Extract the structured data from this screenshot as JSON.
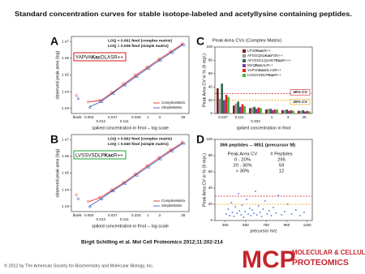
{
  "title": "Standard concentration curves for stable isotope-labeled and acetyllysine containing peptides.",
  "citation": "Birgit Schilling et al. Mol Cell Proteomics 2012;11:202-214",
  "copyright": "© 2012 by The American Society for Biochemistry and Molecular Biology, Inc.",
  "logo": {
    "mark": "MCP",
    "line1": "MOLECULAR & CELLULAR",
    "line2": "PROTEOMICS"
  },
  "chart_data": [
    {
      "type": "line",
      "panel": "A",
      "log_scale": true,
      "annotations": [
        "LOQ = 0.061 fmol (complex matrix)",
        "LOQ = 0.036 fmol (simple matrix)"
      ],
      "peptide": "YAPVAKacDLASR++",
      "peptide_color": "#d7191c",
      "x_label": "spiked concentration in fmol -- log scale",
      "y_label": "observed peak area (log)",
      "categories": [
        "blank",
        "0.004",
        "0.012",
        "0.037",
        "0.111",
        "0.333",
        "1",
        "3",
        null,
        "25"
      ],
      "ylim": [
        500,
        20000000
      ],
      "yticks": [
        {
          "value": 1000,
          "label": "1 e3"
        },
        {
          "value": 10000,
          "label": "1 e4"
        },
        {
          "value": 100000,
          "label": "1 e5"
        },
        {
          "value": 1000000,
          "label": "1 e6"
        },
        {
          "value": 10000000,
          "label": "1 e7"
        }
      ],
      "legend": "lower right",
      "series": [
        {
          "name": "ComplexMatrix",
          "color": "#d7191c",
          "values": [
            6000,
            2500,
            3000,
            9000,
            30000,
            100000,
            300000,
            900000,
            2600000,
            7500000
          ]
        },
        {
          "name": "SimpleMatrix",
          "color": "#2b4fb5",
          "values": [
            4000,
            1200,
            2500,
            8000,
            25000,
            80000,
            250000,
            750000,
            2200000,
            6500000
          ]
        }
      ]
    },
    {
      "type": "line",
      "panel": "B",
      "log_scale": true,
      "annotations": [
        "LOQ = 0.062 fmol (complex matrix)",
        "LOQ = 0.040 fmol (simple matrix)"
      ],
      "peptide": "LVSSVSDLPKacR++",
      "peptide_color": "#1fa02f",
      "x_label": "spiked concentration in fmol -- log scale",
      "y_label": "observed peak area (log)",
      "categories": [
        "blank",
        "0.004",
        "0.012",
        "0.037",
        "0.111",
        "0.333",
        "1",
        "3",
        null,
        "25"
      ],
      "ylim": [
        500,
        20000000
      ],
      "yticks": [
        {
          "value": 1000,
          "label": "1 e3"
        },
        {
          "value": 10000,
          "label": "1 e4"
        },
        {
          "value": 100000,
          "label": "1 e5"
        },
        {
          "value": 1000000,
          "label": "1 e6"
        },
        {
          "value": 10000000,
          "label": "1 e7"
        }
      ],
      "legend": "lower right",
      "series": [
        {
          "name": "ComplexMatrix",
          "color": "#d7191c",
          "values": [
            5000,
            2000,
            3500,
            10000,
            28000,
            90000,
            280000,
            850000,
            2500000,
            7000000
          ]
        },
        {
          "name": "SimpleMatrix",
          "color": "#2b4fb5",
          "values": [
            3000,
            1000,
            2800,
            8500,
            24000,
            75000,
            230000,
            700000,
            2100000,
            6000000
          ]
        }
      ]
    },
    {
      "type": "bar",
      "panel": "C",
      "title": "Peak Area CVs (Complex Matrix)",
      "x_label": "spiked concentration in fmol",
      "y_label": "Peak Area CV in % (9 repl.)",
      "categories": [
        "0.037",
        "0.111",
        "0.333",
        "1",
        "3",
        "25"
      ],
      "ylim": [
        0,
        100
      ],
      "yticks": [
        0,
        20,
        40,
        60,
        80,
        100
      ],
      "thresholds": [
        {
          "value": 30,
          "color": "#d7191c",
          "label": "30% CV"
        },
        {
          "value": 20,
          "color": "#f0a000",
          "label": "20% CV"
        }
      ],
      "legend": "upper right",
      "series": [
        {
          "name": "LFVDKacIR++",
          "color": "#7a1f1f",
          "values": [
            38,
            12,
            8,
            6,
            5,
            4
          ]
        },
        {
          "name": "AFGGQSLKacFGK++",
          "color": "#9a9a9a",
          "values": [
            22,
            15,
            9,
            7,
            5,
            4
          ]
        },
        {
          "name": "AFVDSCLQLHETKacR+++",
          "color": "#2f6b4f",
          "values": [
            45,
            18,
            10,
            7,
            6,
            5
          ]
        },
        {
          "name": "MVQKacALR++",
          "color": "#7b3fa0",
          "values": [
            20,
            10,
            7,
            5,
            4,
            3
          ]
        },
        {
          "name": "YAPVAKacDLASR++",
          "color": "#e0241f",
          "values": [
            28,
            14,
            9,
            6,
            5,
            4
          ]
        },
        {
          "name": "LVSSVSDLPKacR++",
          "color": "#3fbf3f",
          "values": [
            25,
            11,
            8,
            6,
            4,
            3
          ]
        }
      ]
    },
    {
      "type": "scatter",
      "panel": "D",
      "title": "366 peptides -- MS1 (precursor M)",
      "table": {
        "header": [
          "Peak Area CV",
          "# Peptides"
        ],
        "rows": [
          [
            "0 - 20%",
            295
          ],
          [
            "20 - 30%",
            59
          ],
          [
            "> 30%",
            12
          ]
        ]
      },
      "x_label": "precursor m/z",
      "y_label": "Peak Area CV in % (9 repl.)",
      "xlim": [
        250,
        1200
      ],
      "xticks": [
        350,
        550,
        750,
        950,
        1150
      ],
      "ylim": [
        0,
        100
      ],
      "yticks": [
        0,
        20,
        40,
        60,
        80,
        100
      ],
      "thresholds": [
        {
          "value": 30,
          "color": "#d7191c"
        },
        {
          "value": 20,
          "color": "#f0a000"
        }
      ],
      "color": "#3a6fd8",
      "x": [
        360,
        380,
        395,
        410,
        420,
        435,
        450,
        465,
        480,
        490,
        505,
        515,
        530,
        545,
        560,
        575,
        590,
        600,
        615,
        630,
        645,
        660,
        675,
        690,
        705,
        720,
        740,
        760,
        780,
        800,
        820,
        845,
        870,
        900,
        930,
        960,
        1000,
        1040,
        1080,
        1120
      ],
      "values": [
        8,
        14,
        6,
        22,
        10,
        5,
        17,
        9,
        33,
        12,
        7,
        19,
        4,
        11,
        26,
        8,
        15,
        6,
        13,
        9,
        36,
        7,
        18,
        10,
        5,
        14,
        24,
        8,
        12,
        6,
        16,
        9,
        31,
        7,
        11,
        20,
        8,
        13,
        6,
        10
      ]
    }
  ]
}
